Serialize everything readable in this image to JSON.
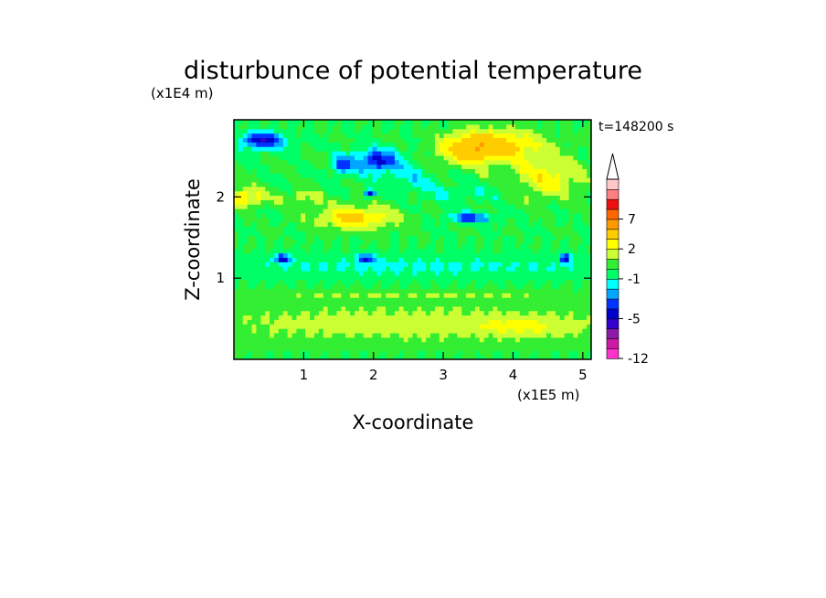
{
  "chart_data": {
    "type": "heatmap",
    "title": "disturbunce of potential temperature",
    "time_label": "t=148200 s",
    "xlabel": "X-coordinate",
    "ylabel": "Z-coordinate",
    "x_unit": "(x1E5 m)",
    "y_unit": "(x1E4 m)",
    "xlim": [
      0,
      5.12
    ],
    "ylim": [
      0,
      2.95
    ],
    "x_ticks": [
      "1",
      "2",
      "3",
      "4",
      "5"
    ],
    "y_ticks": [
      "1",
      "2"
    ],
    "x_tick_values": [
      1,
      2,
      3,
      4,
      5
    ],
    "y_tick_values": [
      1,
      2
    ],
    "colorbar": {
      "labels": [
        "-12",
        "-5",
        "-1",
        "2",
        "7"
      ],
      "label_levels": [
        -12,
        -5,
        -1,
        2,
        7
      ],
      "levels": [
        -12,
        -10,
        -8,
        -6,
        -5,
        -4,
        -3,
        -2,
        -1,
        0,
        1,
        2,
        3,
        5,
        7,
        9,
        11,
        13
      ],
      "colors": [
        "#ff33cc",
        "#cc1aa6",
        "#8c1aa6",
        "#3300cc",
        "#0000cc",
        "#0033ff",
        "#00a6ff",
        "#00ffff",
        "#00ff66",
        "#33ee33",
        "#ccff33",
        "#ffff00",
        "#ffcc00",
        "#ff9900",
        "#ff6600",
        "#ee1111",
        "#ff8080",
        "#ffc8c8"
      ],
      "extend": "max"
    },
    "features": [
      {
        "x": 2.55,
        "z": 1.15,
        "sx": 3.0,
        "sz": 0.13,
        "v": -1.3
      },
      {
        "x": 0.7,
        "z": 1.25,
        "sx": 0.12,
        "sz": 0.05,
        "v": -4.5
      },
      {
        "x": 1.9,
        "z": 1.25,
        "sx": 0.12,
        "sz": 0.05,
        "v": -4
      },
      {
        "x": 4.75,
        "z": 1.25,
        "sx": 0.07,
        "sz": 0.06,
        "v": -5
      },
      {
        "x": 2.55,
        "z": 0.8,
        "sx": 3.0,
        "sz": 0.06,
        "v": 1.0
      },
      {
        "x": 2.55,
        "z": 0.45,
        "sx": 3.0,
        "sz": 0.22,
        "v": 1.7
      },
      {
        "x": 4.2,
        "z": 0.4,
        "sx": 0.7,
        "sz": 0.12,
        "v": 1.2
      },
      {
        "x": 1.75,
        "z": 1.75,
        "sx": 0.55,
        "sz": 0.14,
        "v": 3.5
      },
      {
        "x": 0.15,
        "z": 2.0,
        "sx": 0.3,
        "sz": 0.12,
        "v": 3
      },
      {
        "x": 1.0,
        "z": 2.0,
        "sx": 0.3,
        "sz": 0.1,
        "v": 1.5
      },
      {
        "x": 3.4,
        "z": 2.6,
        "sx": 0.45,
        "sz": 0.2,
        "v": 4.5
      },
      {
        "x": 4.5,
        "z": 2.25,
        "sx": 0.5,
        "sz": 0.25,
        "v": 2.5
      },
      {
        "x": 4.0,
        "z": 2.65,
        "sx": 0.5,
        "sz": 0.2,
        "v": 2.5
      },
      {
        "x": 0.4,
        "z": 2.7,
        "sx": 0.3,
        "sz": 0.1,
        "v": -5
      },
      {
        "x": 2.05,
        "z": 2.45,
        "sx": 0.3,
        "sz": 0.14,
        "v": -4.5
      },
      {
        "x": 1.55,
        "z": 2.4,
        "sx": 0.15,
        "sz": 0.12,
        "v": -3.5
      },
      {
        "x": 3.4,
        "z": 1.75,
        "sx": 0.3,
        "sz": 0.06,
        "v": -4
      },
      {
        "x": 2.55,
        "z": 2.25,
        "sx": 0.3,
        "sz": 0.15,
        "v": -1.5
      },
      {
        "x": 3.2,
        "z": 2.05,
        "sx": 0.6,
        "sz": 0.12,
        "v": -1
      },
      {
        "x": 1.95,
        "z": 2.05,
        "sx": 0.08,
        "sz": 0.05,
        "v": -5
      }
    ]
  }
}
